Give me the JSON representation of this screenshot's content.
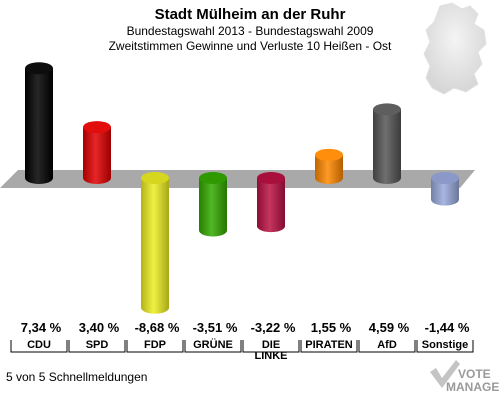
{
  "header": {
    "title": "Stadt Mülheim an der Ruhr",
    "subtitle1": "Bundestagswahl 2013 - Bundestagswahl 2009",
    "subtitle2": "Zweitstimmen Gewinne und Verluste 10 Heißen - Ost"
  },
  "footer": {
    "text": "5 von 5 Schnellmeldungen"
  },
  "logo": {
    "line1": "VOTE",
    "line2": "MANAGER"
  },
  "chart_data": {
    "type": "bar",
    "title": "Stadt Mülheim an der Ruhr",
    "categories": [
      "CDU",
      "SPD",
      "FDP",
      "GRÜNE",
      "DIE LINKE",
      "PIRATEN",
      "AfD",
      "Sonstige"
    ],
    "category_lines": [
      [
        "CDU"
      ],
      [
        "SPD"
      ],
      [
        "FDP"
      ],
      [
        "GRÜNE"
      ],
      [
        "DIE",
        "LINKE"
      ],
      [
        "PIRATEN"
      ],
      [
        "AfD"
      ],
      [
        "Sonstige"
      ]
    ],
    "values": [
      7.34,
      3.4,
      -8.68,
      -3.51,
      -3.22,
      1.55,
      4.59,
      -1.44
    ],
    "value_labels": [
      "7,34 %",
      "3,40 %",
      "-8,68 %",
      "-3,51 %",
      "-3,22 %",
      "1,55 %",
      "4,59 %",
      "-1,44 %"
    ],
    "colors": [
      "#000000",
      "#e00000",
      "#eeee22",
      "#33aa00",
      "#bb1144",
      "#ff8800",
      "#555555",
      "#99aadd"
    ],
    "xlabel": "",
    "ylabel": "",
    "unit": "%",
    "grid": false,
    "legend": "none"
  }
}
